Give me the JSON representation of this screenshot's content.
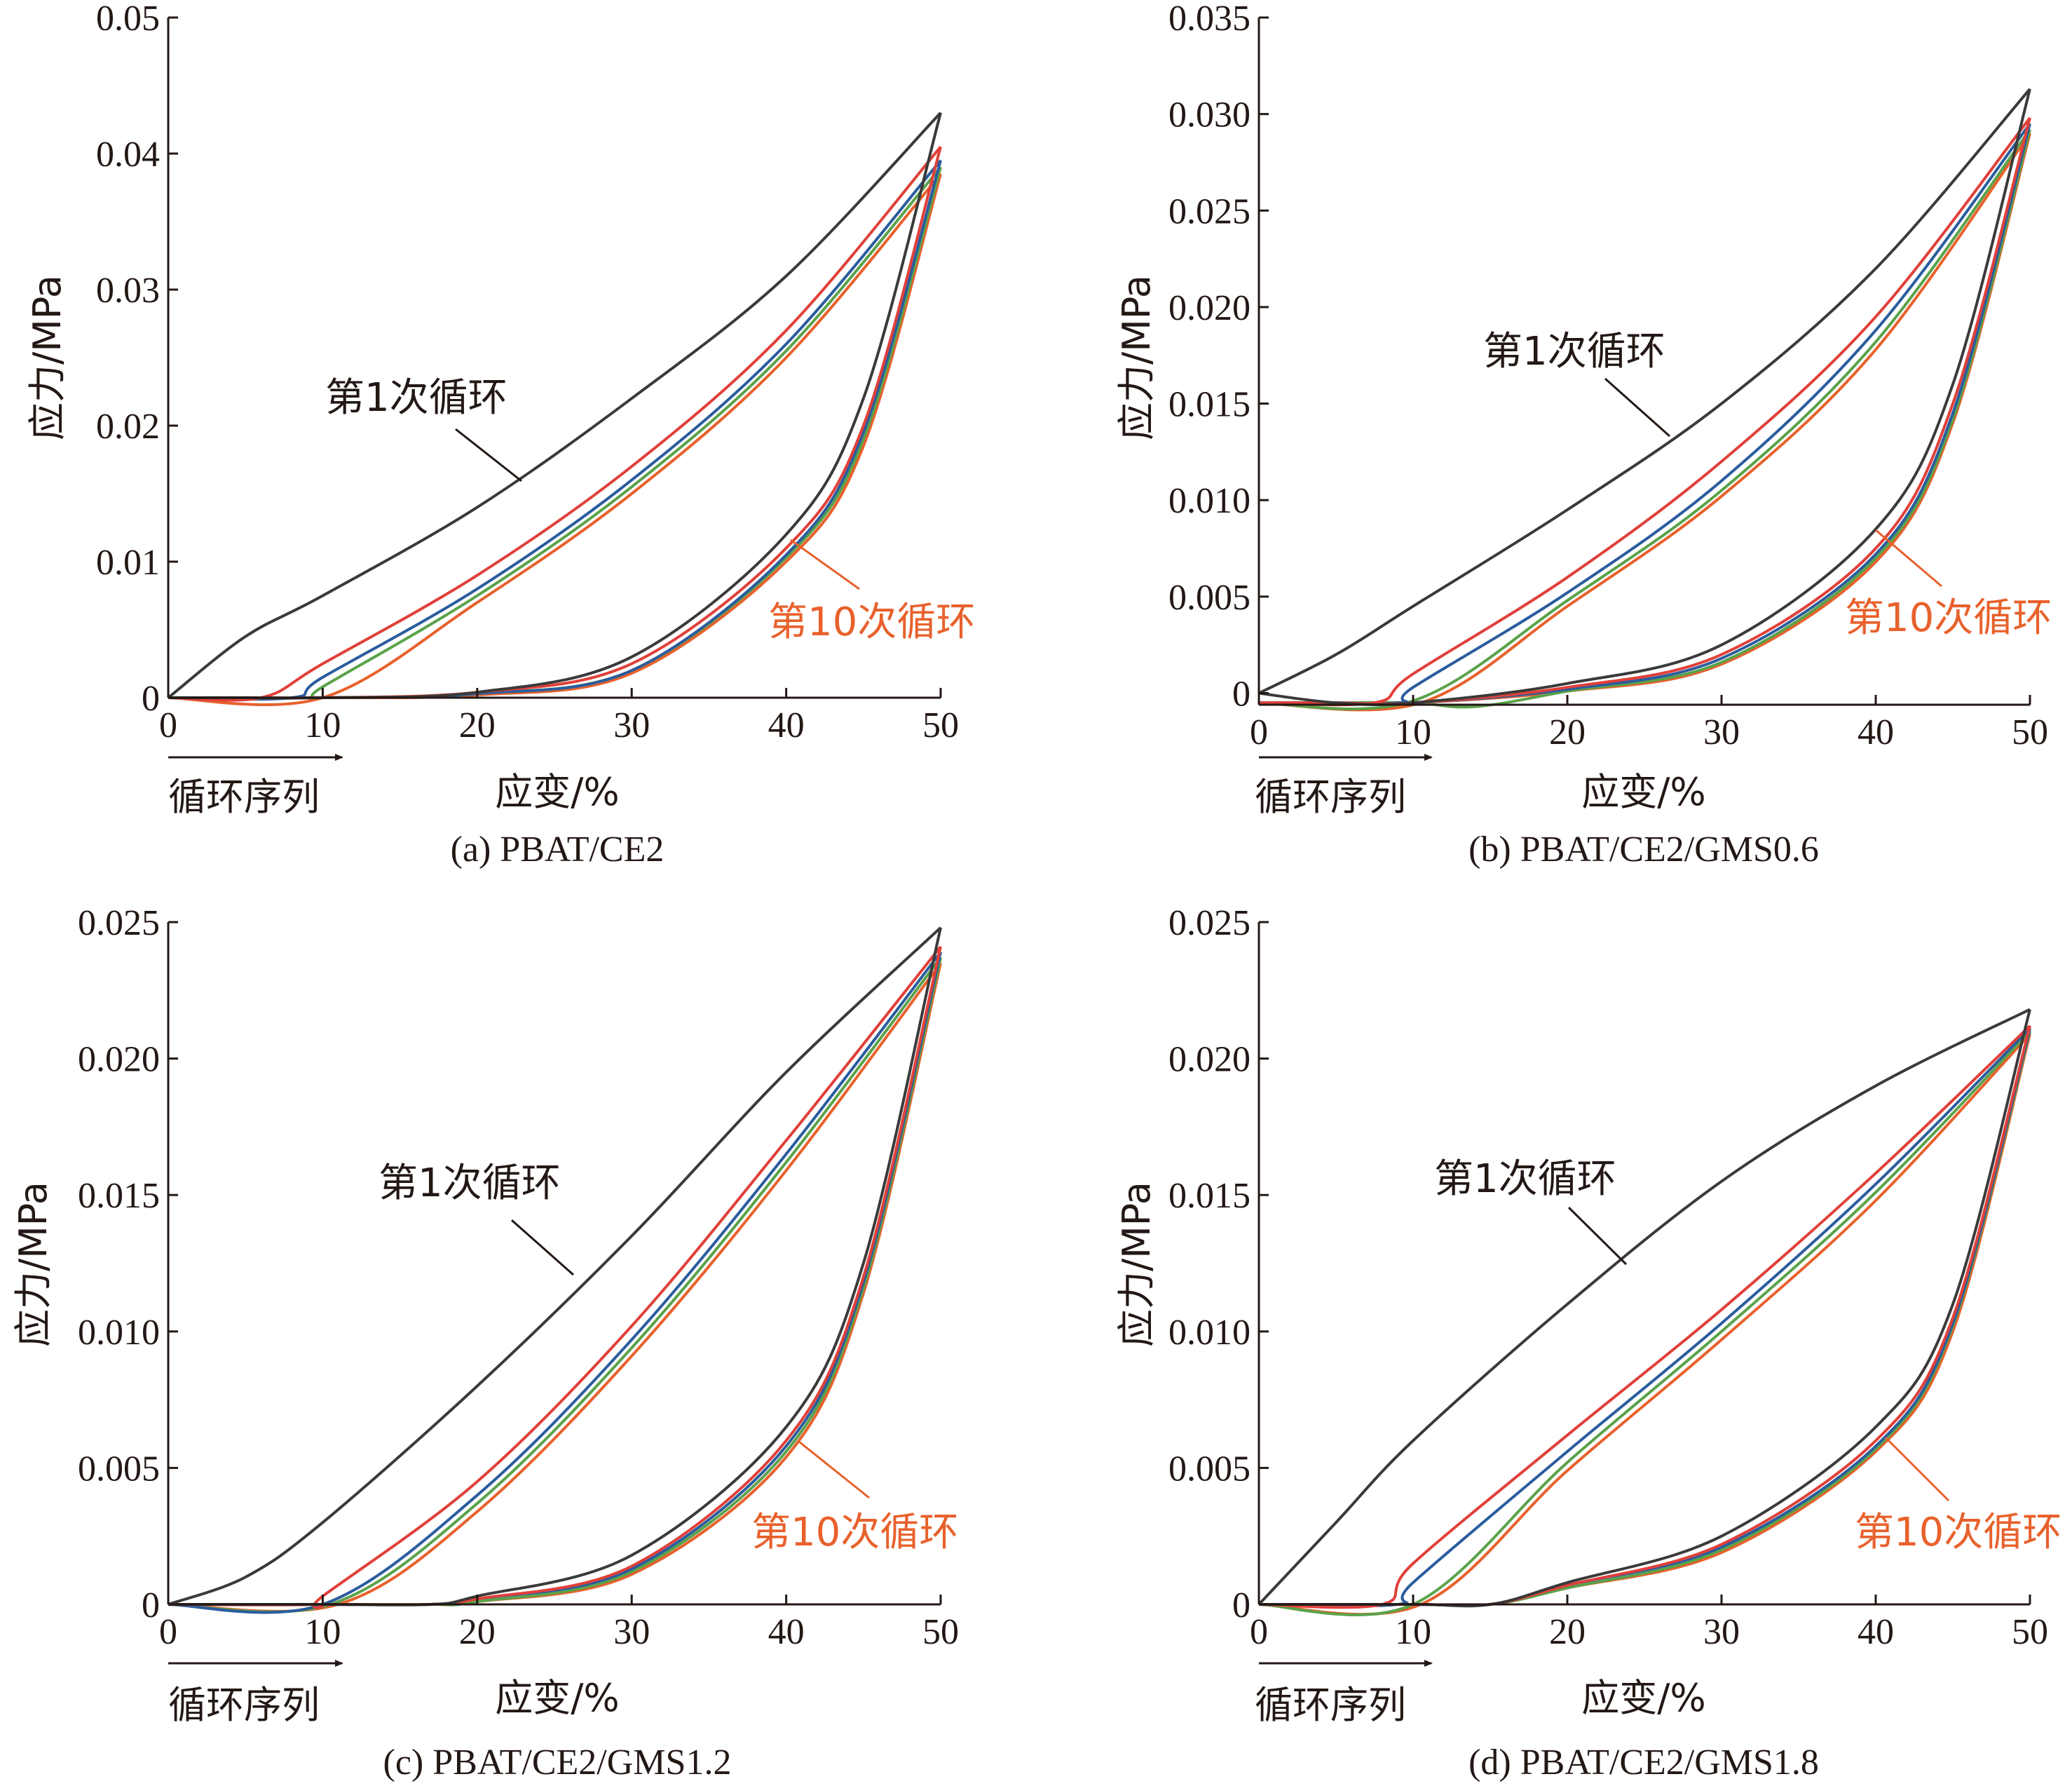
{
  "chart_data": [
    {
      "type": "line",
      "caption": "(a) PBAT/CE2",
      "xlabel": "应变/%",
      "ylabel": "应力/MPa",
      "xlim": [
        0,
        50
      ],
      "ylim": [
        0,
        0.05
      ],
      "xticks": [
        "0",
        "10",
        "20",
        "30",
        "40",
        "50"
      ],
      "yticks": [
        "0",
        "0.01",
        "0.02",
        "0.03",
        "0.04",
        "0.05"
      ],
      "cycle_arrow_label": "循环序列",
      "annotations": [
        {
          "text": "第1次循环",
          "color": "#231815"
        },
        {
          "text": "第10次循环",
          "color": "#e8612c"
        }
      ],
      "series": [
        {
          "color": "#3a3a3a",
          "loading_x": [
            0,
            5,
            10,
            20,
            30,
            40,
            50
          ],
          "loading_y": [
            0,
            0.0045,
            0.0075,
            0.014,
            0.022,
            0.031,
            0.043
          ],
          "unloading_x": [
            0,
            5,
            10,
            20,
            30,
            40,
            45,
            50
          ],
          "unloading_y": [
            0,
            0,
            0,
            0.0004,
            0.003,
            0.012,
            0.022,
            0.043
          ]
        },
        {
          "color": "#e0403a",
          "loading_x": [
            0,
            6,
            10,
            20,
            30,
            40,
            50
          ],
          "loading_y": [
            0,
            0,
            0.0025,
            0.009,
            0.017,
            0.027,
            0.0405
          ],
          "unloading_x": [
            0,
            5,
            10,
            20,
            30,
            40,
            45,
            50
          ],
          "unloading_y": [
            0,
            0,
            0,
            0.0004,
            0.0025,
            0.011,
            0.02,
            0.0405
          ]
        },
        {
          "color": "#2b5c9e",
          "loading_x": [
            0,
            8,
            10,
            20,
            30,
            40,
            50
          ],
          "loading_y": [
            0,
            0,
            0.0015,
            0.008,
            0.016,
            0.026,
            0.0395
          ],
          "unloading_x": [
            0,
            5,
            10,
            20,
            30,
            40,
            45,
            50
          ],
          "unloading_y": [
            0,
            0,
            0,
            0.0003,
            0.002,
            0.0105,
            0.0195,
            0.0395
          ]
        },
        {
          "color": "#5aa24a",
          "loading_x": [
            0,
            9,
            10,
            20,
            30,
            40,
            50
          ],
          "loading_y": [
            0,
            0,
            0.0008,
            0.0075,
            0.0155,
            0.0255,
            0.039
          ],
          "unloading_x": [
            0,
            5,
            10,
            20,
            30,
            40,
            45,
            50
          ],
          "unloading_y": [
            0,
            0,
            0,
            0.0003,
            0.002,
            0.0103,
            0.019,
            0.039
          ]
        },
        {
          "color": "#e8612c",
          "loading_x": [
            0,
            10,
            20,
            30,
            40,
            50
          ],
          "loading_y": [
            0,
            0,
            0.007,
            0.015,
            0.025,
            0.0385
          ],
          "unloading_x": [
            0,
            5,
            10,
            20,
            30,
            40,
            45,
            50
          ],
          "unloading_y": [
            0,
            0,
            0,
            0.0002,
            0.0018,
            0.01,
            0.0185,
            0.0385
          ]
        }
      ]
    },
    {
      "type": "line",
      "caption": "(b) PBAT/CE2/GMS0.6",
      "xlabel": "应变/%",
      "ylabel": "应力/MPa",
      "xlim": [
        0,
        50
      ],
      "ylim": [
        -0.0006,
        0.035
      ],
      "xticks": [
        "0",
        "10",
        "20",
        "30",
        "40",
        "50"
      ],
      "yticks": [
        "0",
        "0.005",
        "0.010",
        "0.015",
        "0.020",
        "0.025",
        "0.030",
        "0.035"
      ],
      "cycle_arrow_label": "循环序列",
      "annotations": [
        {
          "text": "第1次循环",
          "color": "#231815"
        },
        {
          "text": "第10次循环",
          "color": "#e8612c"
        }
      ],
      "series": [
        {
          "color": "#3a3a3a",
          "loading_x": [
            0,
            5,
            10,
            20,
            30,
            40,
            50
          ],
          "loading_y": [
            0,
            0.002,
            0.0045,
            0.0095,
            0.015,
            0.022,
            0.0313
          ],
          "unloading_x": [
            0,
            5,
            10,
            20,
            30,
            40,
            45,
            50
          ],
          "unloading_y": [
            0,
            -0.0005,
            -0.0005,
            0.0005,
            0.0025,
            0.0085,
            0.016,
            0.0313
          ]
        },
        {
          "color": "#e0403a",
          "loading_x": [
            0,
            7.5,
            10,
            20,
            30,
            40,
            50
          ],
          "loading_y": [
            -0.0005,
            -0.0005,
            0.001,
            0.006,
            0.012,
            0.0195,
            0.0298
          ],
          "unloading_x": [
            0,
            5,
            10,
            20,
            30,
            40,
            45,
            50
          ],
          "unloading_y": [
            -0.0005,
            -0.0005,
            -0.0005,
            0.0003,
            0.002,
            0.0075,
            0.015,
            0.0298
          ]
        },
        {
          "color": "#2b5c9e",
          "loading_x": [
            0,
            9,
            10,
            20,
            30,
            40,
            50
          ],
          "loading_y": [
            -0.0005,
            -0.0005,
            0.0003,
            0.0052,
            0.011,
            0.0188,
            0.0295
          ],
          "unloading_x": [
            0,
            5,
            10,
            20,
            30,
            40,
            45,
            50
          ],
          "unloading_y": [
            -0.0005,
            -0.0005,
            -0.0005,
            0.0002,
            0.0018,
            0.0072,
            0.0145,
            0.0295
          ]
        },
        {
          "color": "#5aa24a",
          "loading_x": [
            0,
            10,
            20,
            30,
            40,
            50
          ],
          "loading_y": [
            -0.0005,
            -0.0004,
            0.0048,
            0.0105,
            0.0182,
            0.0292
          ],
          "unloading_x": [
            0,
            5,
            10,
            14,
            20,
            30,
            40,
            45,
            50
          ],
          "unloading_y": [
            -0.0005,
            -0.0005,
            -0.0005,
            -0.0007,
            0.0001,
            0.0016,
            0.007,
            0.0142,
            0.0292
          ]
        },
        {
          "color": "#e8612c",
          "loading_x": [
            0,
            10.5,
            20,
            30,
            40,
            50
          ],
          "loading_y": [
            -0.0005,
            -0.0005,
            0.0045,
            0.0102,
            0.0178,
            0.029
          ],
          "unloading_x": [
            0,
            5,
            10,
            20,
            30,
            40,
            45,
            50
          ],
          "unloading_y": [
            -0.0005,
            -0.0005,
            -0.0005,
            0.0001,
            0.0015,
            0.0068,
            0.014,
            0.029
          ]
        }
      ]
    },
    {
      "type": "line",
      "caption": "(c) PBAT/CE2/GMS1.2",
      "xlabel": "应变/%",
      "ylabel": "应力/MPa",
      "xlim": [
        0,
        50
      ],
      "ylim": [
        0,
        0.025
      ],
      "xticks": [
        "0",
        "10",
        "20",
        "30",
        "40",
        "50"
      ],
      "yticks": [
        "0",
        "0.005",
        "0.010",
        "0.015",
        "0.020",
        "0.025"
      ],
      "cycle_arrow_label": "循环序列",
      "annotations": [
        {
          "text": "第1次循环",
          "color": "#231815"
        },
        {
          "text": "第10次循环",
          "color": "#e8612c"
        }
      ],
      "series": [
        {
          "color": "#3a3a3a",
          "loading_x": [
            0,
            5,
            10,
            20,
            30,
            40,
            50
          ],
          "loading_y": [
            0,
            0.001,
            0.003,
            0.008,
            0.0135,
            0.0195,
            0.0248
          ],
          "unloading_x": [
            0,
            10,
            17,
            20,
            30,
            40,
            45,
            50
          ],
          "unloading_y": [
            0,
            0,
            0,
            0.0003,
            0.0018,
            0.0065,
            0.0125,
            0.0248
          ]
        },
        {
          "color": "#e0403a",
          "loading_x": [
            0,
            9.5,
            10,
            20,
            30,
            40,
            50
          ],
          "loading_y": [
            0,
            0,
            0.0003,
            0.0045,
            0.0102,
            0.017,
            0.0241
          ],
          "unloading_x": [
            0,
            10,
            17,
            20,
            30,
            40,
            45,
            50
          ],
          "unloading_y": [
            0,
            0,
            0,
            0.0002,
            0.0014,
            0.006,
            0.012,
            0.0241
          ]
        },
        {
          "color": "#2b5c9e",
          "loading_x": [
            0,
            10,
            20,
            30,
            40,
            50
          ],
          "loading_y": [
            0,
            0,
            0.004,
            0.0097,
            0.0165,
            0.0239
          ],
          "unloading_x": [
            0,
            10,
            17,
            20,
            30,
            40,
            45,
            50
          ],
          "unloading_y": [
            0,
            0,
            0,
            0.0002,
            0.0013,
            0.0058,
            0.0118,
            0.0239
          ]
        },
        {
          "color": "#5aa24a",
          "loading_x": [
            0,
            10.5,
            20,
            30,
            40,
            50
          ],
          "loading_y": [
            0,
            0,
            0.0037,
            0.0094,
            0.0162,
            0.0237
          ],
          "unloading_x": [
            0,
            10,
            17,
            20,
            30,
            40,
            45,
            50
          ],
          "unloading_y": [
            0,
            0,
            0,
            0.0001,
            0.0012,
            0.0056,
            0.0116,
            0.0237
          ]
        },
        {
          "color": "#e8612c",
          "loading_x": [
            0,
            11,
            20,
            30,
            40,
            50
          ],
          "loading_y": [
            0,
            0,
            0.0034,
            0.0091,
            0.0159,
            0.0235
          ],
          "unloading_x": [
            0,
            10,
            17,
            20,
            30,
            40,
            45,
            50
          ],
          "unloading_y": [
            0,
            0,
            0,
            0.0001,
            0.0011,
            0.0054,
            0.0114,
            0.0235
          ]
        }
      ]
    },
    {
      "type": "line",
      "caption": "(d) PBAT/CE2/GMS1.8",
      "xlabel": "应变/%",
      "ylabel": "应力/MPa",
      "xlim": [
        0,
        50
      ],
      "ylim": [
        0,
        0.025
      ],
      "xticks": [
        "0",
        "10",
        "20",
        "30",
        "40",
        "50"
      ],
      "yticks": [
        "0",
        "0.005",
        "0.010",
        "0.015",
        "0.020",
        "0.025"
      ],
      "cycle_arrow_label": "循环序列",
      "annotations": [
        {
          "text": "第1次循环",
          "color": "#231815"
        },
        {
          "text": "第10次循环",
          "color": "#e8612c"
        }
      ],
      "series": [
        {
          "color": "#3a3a3a",
          "loading_x": [
            0,
            5,
            10,
            20,
            30,
            40,
            50
          ],
          "loading_y": [
            0,
            0.003,
            0.006,
            0.011,
            0.0155,
            0.019,
            0.0218
          ],
          "unloading_x": [
            0,
            10,
            15,
            20,
            30,
            40,
            45,
            50
          ],
          "unloading_y": [
            0,
            0,
            0,
            0.0008,
            0.0025,
            0.0065,
            0.011,
            0.0218
          ]
        },
        {
          "color": "#e0403a",
          "loading_x": [
            0,
            8,
            10,
            20,
            30,
            40,
            50
          ],
          "loading_y": [
            0,
            0,
            0.0015,
            0.0062,
            0.0108,
            0.0158,
            0.0212
          ],
          "unloading_x": [
            0,
            10,
            15,
            20,
            30,
            40,
            45,
            50
          ],
          "unloading_y": [
            0,
            0,
            0,
            0.0007,
            0.0022,
            0.006,
            0.0105,
            0.0212
          ]
        },
        {
          "color": "#2b5c9e",
          "loading_x": [
            0,
            9,
            10,
            20,
            30,
            40,
            50
          ],
          "loading_y": [
            0,
            0,
            0.0008,
            0.0056,
            0.0103,
            0.0154,
            0.0211
          ],
          "unloading_x": [
            0,
            10,
            15,
            20,
            30,
            40,
            45,
            50
          ],
          "unloading_y": [
            0,
            0,
            0,
            0.0007,
            0.0021,
            0.0058,
            0.0103,
            0.0211
          ]
        },
        {
          "color": "#5aa24a",
          "loading_x": [
            0,
            10,
            20,
            30,
            40,
            50
          ],
          "loading_y": [
            0,
            0,
            0.0052,
            0.01,
            0.0151,
            0.021
          ],
          "unloading_x": [
            0,
            10,
            15,
            20,
            30,
            40,
            45,
            50
          ],
          "unloading_y": [
            0,
            0,
            0,
            0.0006,
            0.002,
            0.0057,
            0.0102,
            0.021
          ]
        },
        {
          "color": "#e8612c",
          "loading_x": [
            0,
            10.5,
            20,
            30,
            40,
            50
          ],
          "loading_y": [
            0,
            0,
            0.0049,
            0.0097,
            0.0148,
            0.0209
          ],
          "unloading_x": [
            0,
            10,
            15,
            20,
            30,
            40,
            45,
            50
          ],
          "unloading_y": [
            0,
            0,
            0,
            0.0006,
            0.0019,
            0.0056,
            0.01,
            0.0209
          ]
        }
      ]
    }
  ]
}
